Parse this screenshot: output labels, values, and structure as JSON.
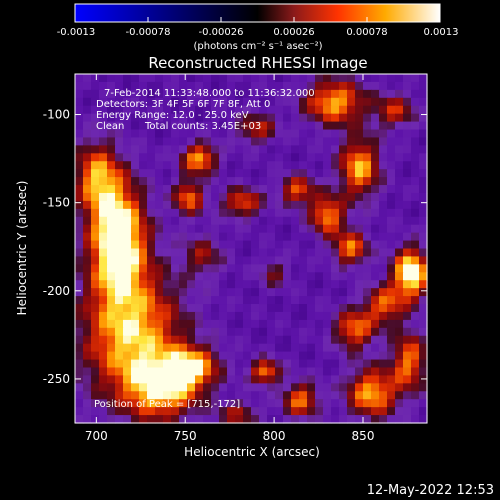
{
  "chart_data": {
    "type": "heatmap",
    "title": "Reconstructed RHESSI Image",
    "xlabel": "Heliocentric X (arcsec)",
    "ylabel": "Heliocentric Y (arcsec)",
    "xlim": [
      688,
      886
    ],
    "ylim": [
      -275,
      -77
    ],
    "x_ticks": [
      700,
      750,
      800,
      850
    ],
    "x_tick_labels": [
      "700",
      "750",
      "800",
      "850"
    ],
    "y_ticks": [
      -100,
      -150,
      -200,
      -250
    ],
    "y_tick_labels": [
      "-100",
      "-150",
      "-200",
      "-250"
    ],
    "colorbar": {
      "min": -0.0013,
      "max": 0.0013,
      "tick_values": [
        -0.0013,
        -0.00078,
        -0.00026,
        0.00026,
        0.00078,
        0.0013
      ],
      "tick_labels": [
        "-0.0013",
        "-0.00078",
        "-0.00026",
        "0.00026",
        "0.00078",
        "0.0013"
      ],
      "unit_label": "(photons cm⁻² s⁻¹ asec⁻²)",
      "colors": [
        "#0000ff",
        "#000000",
        "#8b1a1a",
        "#ff3300",
        "#ffaa00",
        "#ffffff"
      ]
    },
    "annotations": {
      "time_range": "7-Feb-2014 11:33:48.000 to 11:36:32.000",
      "detectors": "Detectors: 3F 4F 5F 6F 7F 8F, Att 0",
      "energy": "Energy Range: 12.0 - 25.0 keV",
      "method": "Clean",
      "counts": "Total counts: 3.45E+03",
      "peak": "Position of Peak = [715,-172]"
    },
    "peak_position": [
      715,
      -172
    ],
    "sources": [
      {
        "x": 712,
        "y": -170,
        "amp": 1.0,
        "sx": 11,
        "sy": 22
      },
      {
        "x": 700,
        "y": -135,
        "amp": 0.6,
        "sx": 9,
        "sy": 14
      },
      {
        "x": 720,
        "y": -225,
        "amp": 0.75,
        "sx": 20,
        "sy": 26
      },
      {
        "x": 738,
        "y": -255,
        "amp": 0.7,
        "sx": 14,
        "sy": 12
      },
      {
        "x": 755,
        "y": -243,
        "amp": 0.6,
        "sx": 10,
        "sy": 8
      },
      {
        "x": 758,
        "y": -125,
        "amp": 0.7,
        "sx": 7,
        "sy": 6
      },
      {
        "x": 752,
        "y": -147,
        "amp": 0.6,
        "sx": 6,
        "sy": 7
      },
      {
        "x": 782,
        "y": -150,
        "amp": 0.55,
        "sx": 8,
        "sy": 6
      },
      {
        "x": 790,
        "y": -108,
        "amp": 0.45,
        "sx": 8,
        "sy": 6
      },
      {
        "x": 813,
        "y": -143,
        "amp": 0.55,
        "sx": 7,
        "sy": 6
      },
      {
        "x": 848,
        "y": -130,
        "amp": 0.7,
        "sx": 8,
        "sy": 12
      },
      {
        "x": 830,
        "y": -157,
        "amp": 0.65,
        "sx": 7,
        "sy": 8
      },
      {
        "x": 843,
        "y": -176,
        "amp": 0.6,
        "sx": 7,
        "sy": 7
      },
      {
        "x": 877,
        "y": -190,
        "amp": 0.95,
        "sx": 7,
        "sy": 10
      },
      {
        "x": 862,
        "y": -208,
        "amp": 0.55,
        "sx": 8,
        "sy": 8
      },
      {
        "x": 845,
        "y": -222,
        "amp": 0.6,
        "sx": 8,
        "sy": 8
      },
      {
        "x": 855,
        "y": -258,
        "amp": 0.7,
        "sx": 10,
        "sy": 10
      },
      {
        "x": 876,
        "y": -240,
        "amp": 0.6,
        "sx": 7,
        "sy": 12
      },
      {
        "x": 834,
        "y": -93,
        "amp": 0.7,
        "sx": 12,
        "sy": 9
      },
      {
        "x": 868,
        "y": -98,
        "amp": 0.45,
        "sx": 8,
        "sy": 7
      },
      {
        "x": 795,
        "y": -246,
        "amp": 0.65,
        "sx": 6,
        "sy": 5
      },
      {
        "x": 815,
        "y": -262,
        "amp": 0.6,
        "sx": 7,
        "sy": 7
      },
      {
        "x": 780,
        "y": -270,
        "amp": 0.4,
        "sx": 8,
        "sy": 5
      },
      {
        "x": 760,
        "y": -180,
        "amp": 0.35,
        "sx": 8,
        "sy": 8
      },
      {
        "x": 800,
        "y": -190,
        "amp": 0.3,
        "sx": 6,
        "sy": 6
      }
    ],
    "grid": false
  },
  "footer": {
    "timestamp": "12-May-2022 12:53"
  }
}
